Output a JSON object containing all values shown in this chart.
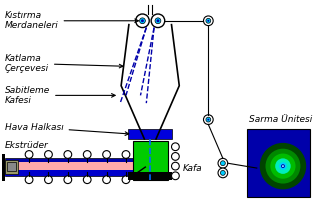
{
  "bg_color": "#ffffff",
  "labels": {
    "kistirma": "Kıstırma\nMerdaneleri",
    "katlama": "Katlama\nÇerçevesi",
    "sabitleme": "Sabitleme\nKafesi",
    "hava": "Hava Halkası",
    "ekstruder": "Ekstrüder",
    "kafa": "Kafa",
    "sarma": "Sarma Ünitesi"
  },
  "colors": {
    "green_dark": "#00aa00",
    "green_med": "#00cc00",
    "green_light": "#00ff00",
    "blue_dark": "#0000aa",
    "blue_med": "#0000cc",
    "blue_light": "#0066ff",
    "cyan": "#00ffff",
    "pink": "#ffaaaa",
    "gray": "#888888",
    "olive": "#888844",
    "black": "#000000",
    "white": "#ffffff",
    "roller_fill": "#ffffff",
    "roller_outline": "#000000",
    "air_ring_blue": "#0000dd"
  }
}
